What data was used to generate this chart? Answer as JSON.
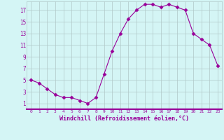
{
  "x": [
    0,
    1,
    2,
    3,
    4,
    5,
    6,
    7,
    8,
    9,
    10,
    11,
    12,
    13,
    14,
    15,
    16,
    17,
    18,
    19,
    20,
    21,
    22,
    23
  ],
  "y": [
    5,
    4.5,
    3.5,
    2.5,
    2,
    2,
    1.5,
    1,
    2,
    6,
    10,
    13,
    15.5,
    17,
    18,
    18,
    17.5,
    18,
    17.5,
    17,
    13,
    12,
    11,
    7.5
  ],
  "line_color": "#990099",
  "marker": "D",
  "marker_size": 2.5,
  "bg_color": "#d4f5f5",
  "grid_color": "#b0c8c8",
  "xlabel": "Windchill (Refroidissement éolien,°C)",
  "xlabel_color": "#990099",
  "ylabel_ticks": [
    1,
    3,
    5,
    7,
    9,
    11,
    13,
    15,
    17
  ],
  "xtick_labels": [
    "0",
    "1",
    "2",
    "3",
    "4",
    "5",
    "6",
    "7",
    "8",
    "9",
    "10",
    "11",
    "12",
    "13",
    "14",
    "15",
    "16",
    "17",
    "18",
    "19",
    "20",
    "21",
    "22",
    "23"
  ],
  "ylim": [
    0,
    18.5
  ],
  "xlim": [
    -0.5,
    23.5
  ],
  "tick_color": "#990099",
  "spine_color": "#990099",
  "bottom_bar_color": "#990099"
}
